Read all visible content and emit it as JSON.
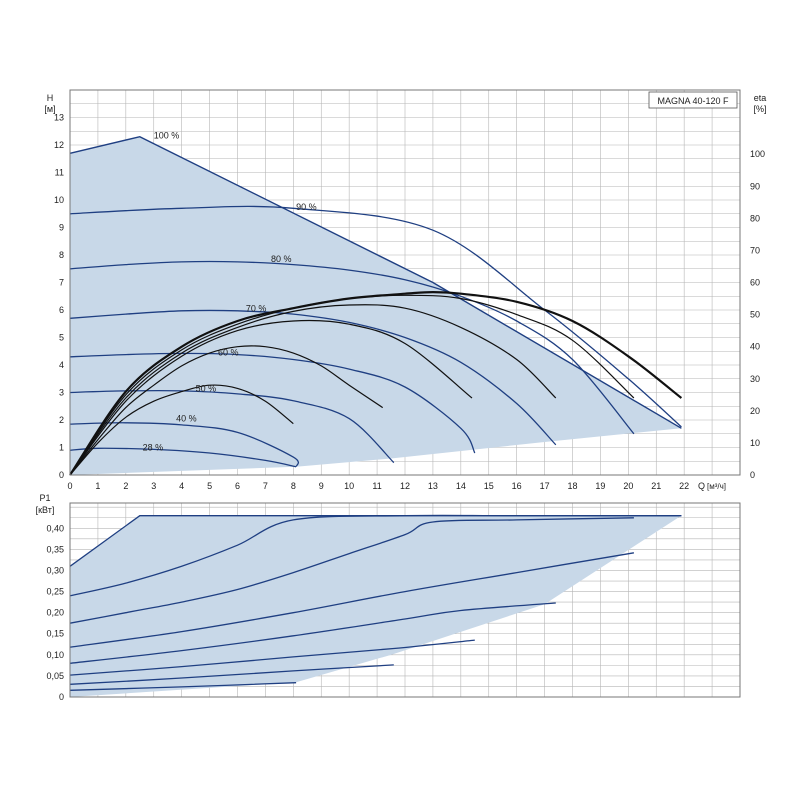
{
  "chart_data": [
    {
      "type": "line",
      "name": "head-and-efficiency",
      "title": "MAGNA 40-120 F",
      "ylabel": "H",
      "yunit": "[м]",
      "y2label": "eta",
      "y2unit": "[%]",
      "xlabel": "Q",
      "xunit": "[м³/ч]",
      "xlim": [
        0,
        24
      ],
      "ylim": [
        0,
        14
      ],
      "y2lim": [
        0,
        120
      ],
      "xticks": [
        "0",
        "1",
        "2",
        "3",
        "4",
        "5",
        "6",
        "7",
        "8",
        "9",
        "10",
        "11",
        "12",
        "13",
        "14",
        "15",
        "16",
        "17",
        "18",
        "19",
        "20",
        "21",
        "22"
      ],
      "yticks": [
        "0",
        "1",
        "2",
        "3",
        "4",
        "5",
        "6",
        "7",
        "8",
        "9",
        "10",
        "11",
        "12",
        "13"
      ],
      "y2ticks": [
        "0",
        "10",
        "20",
        "30",
        "40",
        "50",
        "60",
        "70",
        "80",
        "90",
        "100"
      ],
      "grid": true,
      "operating_area": [
        [
          0,
          11.7
        ],
        [
          2.5,
          12.3
        ],
        [
          13,
          7.0
        ],
        [
          21.9,
          1.7
        ],
        [
          17,
          1.2
        ],
        [
          11.5,
          0.6
        ],
        [
          8.1,
          0.3
        ],
        [
          0,
          0
        ]
      ],
      "curve_labels": [
        "100 %",
        "90 %",
        "80 %",
        "70 %",
        "60 %",
        "50 %",
        "40 %",
        "28 %"
      ],
      "series": [
        {
          "label": "100 %",
          "x": [
            0,
            2.5,
            13,
            21.9
          ],
          "y": [
            11.7,
            12.3,
            7.0,
            1.7
          ]
        },
        {
          "label": "90 %",
          "x": [
            0,
            4,
            8,
            13,
            17,
            20,
            21.9
          ],
          "y": [
            9.5,
            9.7,
            9.7,
            8.9,
            6.0,
            3.5,
            1.75
          ]
        },
        {
          "label": "80 %",
          "x": [
            0,
            2,
            4,
            6,
            8,
            10,
            12,
            14,
            16,
            18,
            20.2
          ],
          "y": [
            7.5,
            7.65,
            7.75,
            7.75,
            7.65,
            7.45,
            7.1,
            6.5,
            5.6,
            4.2,
            1.5
          ]
        },
        {
          "label": "70 %",
          "x": [
            0,
            2,
            4,
            6,
            8,
            10,
            12,
            14,
            16,
            17.4
          ],
          "y": [
            5.7,
            5.85,
            5.97,
            5.97,
            5.85,
            5.55,
            5.0,
            4.1,
            2.6,
            1.1
          ]
        },
        {
          "label": "60 %",
          "x": [
            0,
            2,
            4,
            6,
            8,
            10,
            12,
            14,
            14.5
          ],
          "y": [
            4.3,
            4.38,
            4.42,
            4.38,
            4.2,
            3.85,
            3.2,
            1.7,
            0.8
          ]
        },
        {
          "label": "50 %",
          "x": [
            0,
            2,
            4,
            6,
            8,
            10,
            11.6
          ],
          "y": [
            3.0,
            3.06,
            3.06,
            2.95,
            2.7,
            2.05,
            0.45
          ]
        },
        {
          "label": "40 %",
          "x": [
            0,
            2,
            4,
            6,
            8,
            8.1
          ],
          "y": [
            1.85,
            1.9,
            1.82,
            1.55,
            0.65,
            0.3
          ]
        },
        {
          "label": "28 %",
          "x": [
            0,
            1,
            3,
            5,
            7,
            8.1
          ],
          "y": [
            0.9,
            0.97,
            0.93,
            0.8,
            0.53,
            0.3
          ]
        }
      ],
      "efficiency_series": [
        {
          "x": [
            0,
            1,
            2,
            3,
            4,
            5,
            6,
            7,
            8
          ],
          "y": [
            0,
            10,
            18,
            23,
            26,
            28,
            27,
            23,
            16
          ]
        },
        {
          "x": [
            0,
            1,
            2,
            3,
            4,
            5,
            6,
            7,
            8,
            9,
            10,
            11.2
          ],
          "y": [
            0,
            11,
            21,
            28,
            34,
            38,
            40,
            40,
            38,
            34,
            28,
            21
          ]
        },
        {
          "x": [
            0,
            2,
            4,
            6,
            8,
            10,
            12,
            14.4
          ],
          "y": [
            0,
            23,
            37,
            45,
            48,
            47,
            41,
            24
          ]
        },
        {
          "x": [
            0,
            2,
            4,
            6,
            8,
            10,
            12,
            14,
            16,
            17.4
          ],
          "y": [
            0,
            24,
            38,
            46,
            51,
            53,
            52,
            46,
            36,
            24
          ]
        },
        {
          "x": [
            0,
            2,
            4,
            6,
            8,
            10,
            12,
            14,
            16,
            18,
            20.2
          ],
          "y": [
            0,
            25,
            39,
            47,
            52,
            55,
            56,
            55,
            50,
            42,
            24
          ]
        },
        {
          "x": [
            0,
            2,
            4,
            6,
            8,
            10,
            12,
            13,
            14,
            16,
            18,
            20,
            21.9
          ],
          "y": [
            0,
            26,
            40,
            48,
            52,
            55,
            56.5,
            57,
            56.5,
            54,
            48,
            37,
            24
          ]
        }
      ]
    },
    {
      "type": "line",
      "name": "power",
      "ylabel": "P1",
      "yunit": "[кВт]",
      "xlim": [
        0,
        24
      ],
      "ylim": [
        0,
        0.46
      ],
      "yticks": [
        "0",
        "0,05",
        "0,10",
        "0,15",
        "0,20",
        "0,25",
        "0,30",
        "0,35",
        "0,40"
      ],
      "grid": true,
      "operating_area": [
        [
          0,
          0.31
        ],
        [
          2.5,
          0.43
        ],
        [
          21.9,
          0.43
        ],
        [
          17,
          0.22
        ],
        [
          11.5,
          0.1
        ],
        [
          8.1,
          0.035
        ],
        [
          0,
          0
        ]
      ],
      "series": [
        {
          "label": "100 %",
          "x": [
            0,
            2.5,
            21.9
          ],
          "y": [
            0.31,
            0.43,
            0.43
          ]
        },
        {
          "label": "90 %",
          "x": [
            0,
            2,
            4,
            6,
            8,
            12,
            16,
            21.9
          ],
          "y": [
            0.24,
            0.27,
            0.31,
            0.36,
            0.42,
            0.43,
            0.43,
            0.43
          ]
        },
        {
          "label": "80 %",
          "x": [
            0,
            2,
            4,
            6,
            8,
            10,
            12,
            13,
            16,
            20.2
          ],
          "y": [
            0.175,
            0.2,
            0.225,
            0.255,
            0.295,
            0.34,
            0.385,
            0.415,
            0.42,
            0.425
          ]
        },
        {
          "label": "70 %",
          "x": [
            0,
            4,
            8,
            12,
            16,
            20.2
          ],
          "y": [
            0.118,
            0.155,
            0.2,
            0.25,
            0.295,
            0.342
          ]
        },
        {
          "label": "60 %",
          "x": [
            0,
            4,
            8,
            12,
            14,
            17.4
          ],
          "y": [
            0.08,
            0.11,
            0.145,
            0.185,
            0.205,
            0.223
          ]
        },
        {
          "label": "50 %",
          "x": [
            0,
            4,
            8,
            11.6,
            14.5
          ],
          "y": [
            0.052,
            0.072,
            0.095,
            0.115,
            0.135
          ]
        },
        {
          "label": "40 %",
          "x": [
            0,
            4,
            8,
            11.6
          ],
          "y": [
            0.03,
            0.045,
            0.062,
            0.076
          ]
        },
        {
          "label": "28 %",
          "x": [
            0,
            4,
            8.1
          ],
          "y": [
            0.016,
            0.024,
            0.034
          ]
        }
      ]
    }
  ]
}
